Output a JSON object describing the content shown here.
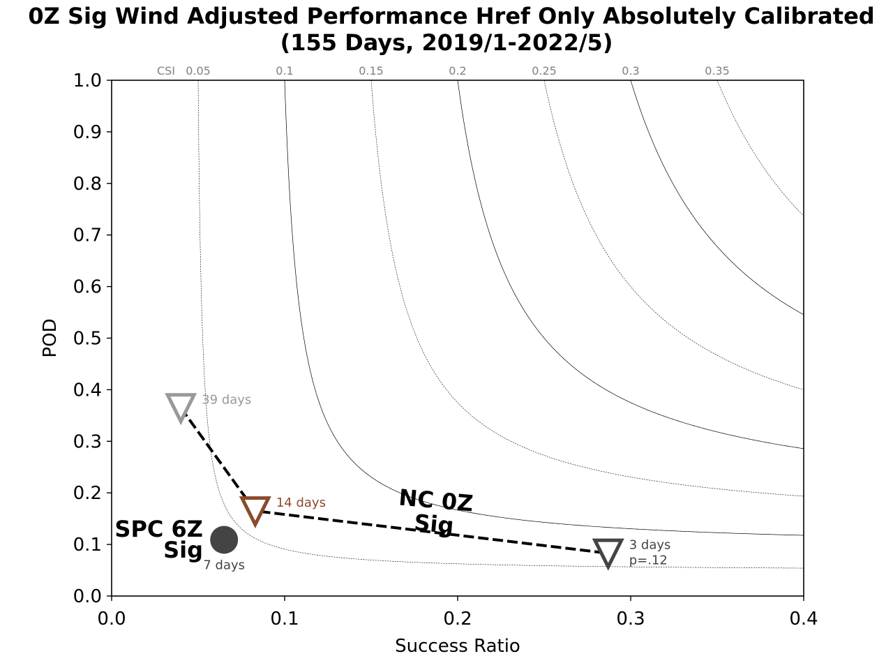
{
  "chart_data": {
    "type": "scatter",
    "title": "0Z Sig Wind Adjusted Performance Href Only Absolutely Calibrated",
    "subtitle": "(155 Days, 2019/1-2022/5)",
    "xlabel": "Success Ratio",
    "ylabel": "POD",
    "xlim": [
      0.0,
      0.4
    ],
    "ylim": [
      0.0,
      1.0
    ],
    "x_ticks": [
      "0.0",
      "0.1",
      "0.2",
      "0.3",
      "0.4"
    ],
    "y_ticks": [
      "0.0",
      "0.1",
      "0.2",
      "0.3",
      "0.4",
      "0.5",
      "0.6",
      "0.7",
      "0.8",
      "0.9",
      "1.0"
    ],
    "csi_label": "CSI",
    "csi_contours": [
      {
        "value": 0.05,
        "label": "0.05",
        "style": "dotted"
      },
      {
        "value": 0.1,
        "label": "0.1",
        "style": "solid"
      },
      {
        "value": 0.15,
        "label": "0.15",
        "style": "dotted"
      },
      {
        "value": 0.2,
        "label": "0.2",
        "style": "solid"
      },
      {
        "value": 0.25,
        "label": "0.25",
        "style": "dotted"
      },
      {
        "value": 0.3,
        "label": "0.3",
        "style": "solid"
      },
      {
        "value": 0.35,
        "label": "0.35",
        "style": "dotted"
      }
    ],
    "series": [
      {
        "label_lines": [
          "NC 0Z",
          "Sig"
        ],
        "line_style": "dashed",
        "marker": "triangle-down",
        "points": [
          {
            "x": 0.04,
            "y": 0.365,
            "label": "39 days",
            "color": "#999999"
          },
          {
            "x": 0.083,
            "y": 0.165,
            "label": "14 days",
            "color": "#8b4a2b"
          },
          {
            "x": 0.287,
            "y": 0.083,
            "label": "3 days",
            "label2": "p=.12",
            "color": "#444444"
          }
        ]
      },
      {
        "label_lines": [
          "SPC 6Z",
          "Sig"
        ],
        "marker": "circle",
        "points": [
          {
            "x": 0.065,
            "y": 0.109,
            "label": "7 days",
            "color": "#444444"
          }
        ]
      }
    ]
  }
}
